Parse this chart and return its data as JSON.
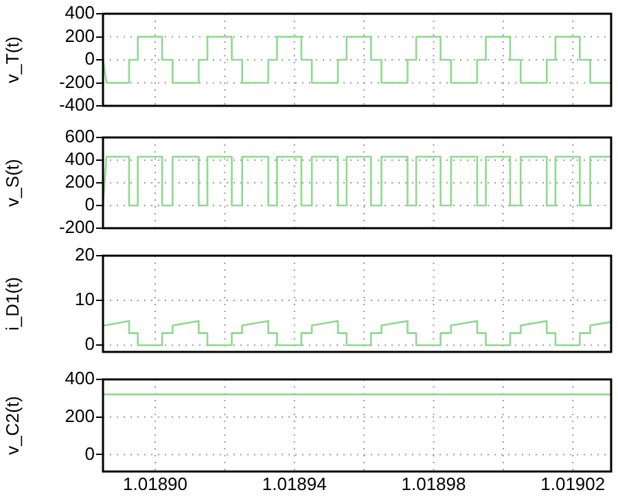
{
  "chart_data": [
    {
      "type": "line",
      "ylabel": "v_T(t)",
      "xlim": [
        1.018885,
        1.019031
      ],
      "ylim": [
        -400,
        400
      ],
      "yticks": [
        -400,
        -200,
        0,
        200,
        400
      ],
      "grid": true,
      "tick_labels": "y",
      "xticks": [
        {
          "value": 1.0189,
          "label": null
        },
        {
          "value": 1.01892,
          "label": null
        },
        {
          "value": 1.01894,
          "label": null
        },
        {
          "value": 1.01896,
          "label": null
        },
        {
          "value": 1.01898,
          "label": null
        },
        {
          "value": 1.019,
          "label": null
        },
        {
          "value": 1.01902,
          "label": null
        }
      ],
      "x": [
        1.018885,
        1.018886,
        1.0188925,
        1.0188925,
        1.018895,
        1.018895,
        1.018902,
        1.018902,
        1.018905,
        1.018905,
        1.0189125,
        1.0189125,
        1.018915,
        1.018915,
        1.018922,
        1.018922,
        1.018925,
        1.018925,
        1.0189325,
        1.0189325,
        1.018935,
        1.018935,
        1.018942,
        1.018942,
        1.018945,
        1.018945,
        1.0189525,
        1.0189525,
        1.018955,
        1.018955,
        1.018962,
        1.018962,
        1.018965,
        1.018965,
        1.0189725,
        1.0189725,
        1.018975,
        1.018975,
        1.018982,
        1.018982,
        1.018985,
        1.018985,
        1.0189925,
        1.0189925,
        1.018995,
        1.018995,
        1.019002,
        1.019002,
        1.019005,
        1.019005,
        1.0190125,
        1.0190125,
        1.019015,
        1.019015,
        1.019022,
        1.019022,
        1.019025,
        1.019025,
        1.019031
      ],
      "series": [
        {
          "color": "#8ed98e",
          "values": [
            0,
            -200,
            -200,
            0,
            0,
            200,
            200,
            0,
            0,
            -200,
            -200,
            0,
            0,
            200,
            200,
            0,
            0,
            -200,
            -200,
            0,
            0,
            200,
            200,
            0,
            0,
            -200,
            -200,
            0,
            0,
            200,
            200,
            0,
            0,
            -200,
            -200,
            0,
            0,
            200,
            200,
            0,
            0,
            -200,
            -200,
            0,
            0,
            200,
            200,
            0,
            0,
            -200,
            -200,
            0,
            0,
            200,
            200,
            0,
            0,
            -200,
            -200
          ]
        }
      ]
    },
    {
      "type": "line",
      "ylabel": "v_S(t)",
      "xlim": [
        1.018885,
        1.019031
      ],
      "ylim": [
        -200,
        600
      ],
      "yticks": [
        -200,
        0,
        200,
        400,
        600
      ],
      "grid": true,
      "tick_labels": "y",
      "xticks": [
        {
          "value": 1.0189,
          "label": null
        },
        {
          "value": 1.01892,
          "label": null
        },
        {
          "value": 1.01894,
          "label": null
        },
        {
          "value": 1.01896,
          "label": null
        },
        {
          "value": 1.01898,
          "label": null
        },
        {
          "value": 1.019,
          "label": null
        },
        {
          "value": 1.01902,
          "label": null
        }
      ],
      "x": [
        1.018885,
        1.018886,
        1.0188925,
        1.0188925,
        1.018895,
        1.018895,
        1.018902,
        1.018902,
        1.018905,
        1.018905,
        1.0189125,
        1.0189125,
        1.018915,
        1.018915,
        1.018922,
        1.018922,
        1.018925,
        1.018925,
        1.0189325,
        1.0189325,
        1.018935,
        1.018935,
        1.018942,
        1.018942,
        1.018945,
        1.018945,
        1.0189525,
        1.0189525,
        1.018955,
        1.018955,
        1.018962,
        1.018962,
        1.018965,
        1.018965,
        1.0189725,
        1.0189725,
        1.018975,
        1.018975,
        1.018982,
        1.018982,
        1.018985,
        1.018985,
        1.0189925,
        1.0189925,
        1.018995,
        1.018995,
        1.019002,
        1.019002,
        1.019005,
        1.019005,
        1.0190125,
        1.0190125,
        1.019015,
        1.019015,
        1.019022,
        1.019022,
        1.019025,
        1.019025,
        1.019031
      ],
      "series": [
        {
          "color": "#8ed98e",
          "values": [
            0,
            430,
            430,
            0,
            0,
            430,
            430,
            0,
            0,
            430,
            430,
            0,
            0,
            430,
            430,
            0,
            0,
            430,
            430,
            0,
            0,
            430,
            430,
            0,
            0,
            430,
            430,
            0,
            0,
            430,
            430,
            0,
            0,
            430,
            430,
            0,
            0,
            430,
            430,
            0,
            0,
            430,
            430,
            0,
            0,
            430,
            430,
            0,
            0,
            430,
            430,
            0,
            0,
            430,
            430,
            0,
            0,
            430,
            430
          ]
        }
      ]
    },
    {
      "type": "line",
      "ylabel": "i_D1(t)",
      "xlim": [
        1.018885,
        1.019031
      ],
      "ylim": [
        -1.5,
        20
      ],
      "yticks": [
        0,
        10,
        20
      ],
      "grid": true,
      "tick_labels": "y",
      "xticks": [
        {
          "value": 1.0189,
          "label": null
        },
        {
          "value": 1.01892,
          "label": null
        },
        {
          "value": 1.01894,
          "label": null
        },
        {
          "value": 1.01896,
          "label": null
        },
        {
          "value": 1.01898,
          "label": null
        },
        {
          "value": 1.019,
          "label": null
        },
        {
          "value": 1.01902,
          "label": null
        }
      ],
      "x": [
        1.018885,
        1.018886,
        1.0188925,
        1.0188925,
        1.018895,
        1.018895,
        1.018902,
        1.018902,
        1.018905,
        1.018905,
        1.0189125,
        1.0189125,
        1.018915,
        1.018915,
        1.018922,
        1.018922,
        1.018925,
        1.018925,
        1.0189325,
        1.0189325,
        1.018935,
        1.018935,
        1.018942,
        1.018942,
        1.018945,
        1.018945,
        1.0189525,
        1.0189525,
        1.018955,
        1.018955,
        1.018962,
        1.018962,
        1.018965,
        1.018965,
        1.0189725,
        1.0189725,
        1.018975,
        1.018975,
        1.018982,
        1.018982,
        1.018985,
        1.018985,
        1.0189925,
        1.0189925,
        1.018995,
        1.018995,
        1.019002,
        1.019002,
        1.019005,
        1.019005,
        1.0190125,
        1.0190125,
        1.019015,
        1.019015,
        1.019022,
        1.019022,
        1.019025,
        1.019025,
        1.019031
      ],
      "series": [
        {
          "color": "#8ed98e",
          "values": [
            4.4,
            4.5,
            5.4,
            2.7,
            2.7,
            0,
            0,
            2.7,
            2.7,
            4.4,
            5.4,
            2.7,
            2.7,
            0,
            0,
            2.7,
            2.7,
            4.4,
            5.4,
            2.7,
            2.7,
            0,
            0,
            2.7,
            2.7,
            4.4,
            5.4,
            2.7,
            2.7,
            0,
            0,
            2.7,
            2.7,
            4.4,
            5.4,
            2.7,
            2.7,
            0,
            0,
            2.7,
            2.7,
            4.4,
            5.4,
            2.7,
            2.7,
            0,
            0,
            2.7,
            2.7,
            4.4,
            5.4,
            2.7,
            2.7,
            0,
            0,
            2.7,
            2.7,
            4.4,
            5.2
          ]
        }
      ]
    },
    {
      "type": "line",
      "ylabel": "v_C2(t)",
      "xlim": [
        1.018885,
        1.019031
      ],
      "ylim": [
        -90,
        400
      ],
      "yticks": [
        0,
        200,
        400
      ],
      "grid": true,
      "xticks": [
        {
          "value": 1.0189,
          "label": "1.01890"
        },
        {
          "value": 1.01892,
          "label": null
        },
        {
          "value": 1.01894,
          "label": "1.01894"
        },
        {
          "value": 1.01896,
          "label": null
        },
        {
          "value": 1.01898,
          "label": "1.01898"
        },
        {
          "value": 1.019,
          "label": null
        },
        {
          "value": 1.01902,
          "label": "1.01902"
        }
      ],
      "x": [
        1.018885,
        1.019031
      ],
      "series": [
        {
          "color": "#8ed98e",
          "values": [
            320,
            320
          ]
        }
      ]
    }
  ]
}
